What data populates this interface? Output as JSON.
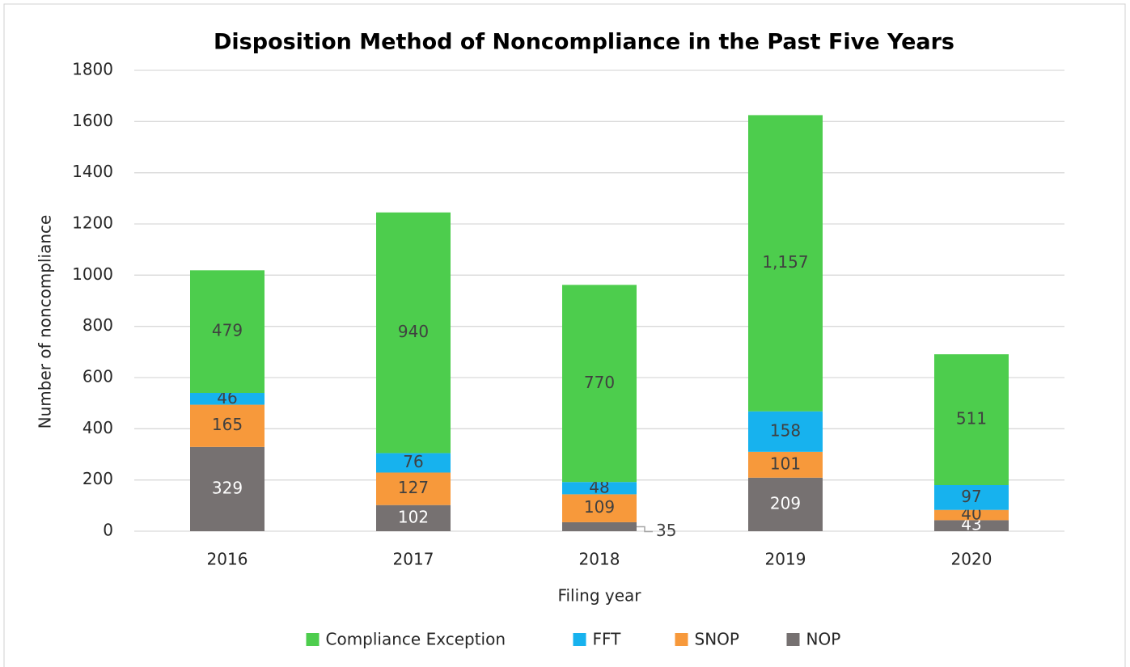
{
  "chart_data": {
    "type": "stacked_bar",
    "title": "Disposition Method of Noncompliance in the Past Five Years",
    "x_label": "Filing year",
    "y_label": "Number of noncompliance",
    "categories": [
      "2016",
      "2017",
      "2018",
      "2019",
      "2020"
    ],
    "series": [
      {
        "name": "NOP",
        "color": "#767171",
        "values": [
          329,
          102,
          35,
          209,
          43
        ]
      },
      {
        "name": "SNOP",
        "color": "#f7993b",
        "values": [
          165,
          127,
          109,
          101,
          40
        ]
      },
      {
        "name": "FFT",
        "color": "#17b2ee",
        "values": [
          46,
          76,
          48,
          158,
          97
        ]
      },
      {
        "name": "Compliance Exception",
        "color": "#4dcd4d",
        "values": [
          479,
          940,
          770,
          1157,
          511
        ],
        "value_labels": [
          "479",
          "940",
          "770",
          "1,157",
          "511"
        ]
      }
    ],
    "ylim": [
      0,
      1800
    ],
    "yticks": [
      0,
      200,
      400,
      600,
      800,
      1000,
      1200,
      1400,
      1600,
      1800
    ],
    "grid": true,
    "legend": "bottom"
  }
}
